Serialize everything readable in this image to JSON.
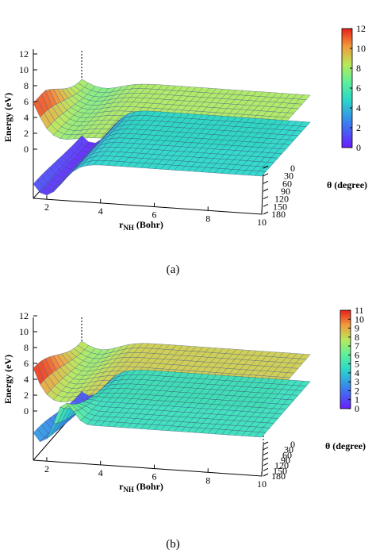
{
  "chart_data": [
    {
      "panel_label": "(a)",
      "type": "surface3d",
      "title": "",
      "xlabel_main": "r",
      "xlabel_sub": "NH",
      "xlabel_rest": " (Bohr)",
      "ylabel": "θ (degree)",
      "zlabel": "Energy (eV)",
      "x_ticks": [
        2,
        4,
        6,
        8,
        10
      ],
      "y_ticks": [
        0,
        30,
        60,
        90,
        120,
        150,
        180
      ],
      "z_ticks": [
        0,
        2,
        4,
        6,
        8,
        10,
        12
      ],
      "xlim": [
        1.5,
        10
      ],
      "ylim": [
        0,
        180
      ],
      "zlim": [
        0,
        12
      ],
      "colorbar": {
        "ticks": [
          0,
          2,
          4,
          6,
          8,
          10,
          12
        ],
        "range": [
          0,
          12
        ]
      },
      "series": [
        {
          "asymptote": 8.2,
          "min": 7.2,
          "r_min": 2.3,
          "peak": 12.0,
          "r0": 1.5
        },
        {
          "asymptote": 4.8,
          "min": 0.2,
          "r_min": 1.9,
          "peak": 1.0,
          "r0": 1.5
        }
      ]
    },
    {
      "panel_label": "(b)",
      "type": "surface3d",
      "title": "",
      "xlabel_main": "r",
      "xlabel_sub": "NH",
      "xlabel_rest": " (Bohr)",
      "ylabel": "θ (degree)",
      "zlabel": "Energy (eV)",
      "x_ticks": [
        2,
        4,
        6,
        8,
        10
      ],
      "y_ticks": [
        0,
        30,
        60,
        90,
        120,
        150,
        180
      ],
      "z_ticks": [
        0,
        2,
        4,
        6,
        8,
        10,
        12
      ],
      "xlim": [
        1.5,
        10
      ],
      "ylim": [
        0,
        180
      ],
      "zlim": [
        0,
        12
      ],
      "colorbar": {
        "ticks": [
          0,
          1,
          2,
          3,
          4,
          5,
          6,
          7,
          8,
          9,
          10,
          11
        ],
        "range": [
          0,
          11
        ]
      },
      "series": [
        {
          "asymptote": 8.3,
          "min": 7.0,
          "r_min": 2.2,
          "peak": 11.0,
          "r0": 1.5
        },
        {
          "asymptote": 4.9,
          "min": 1.0,
          "r_min": 1.8,
          "peak": 3.0,
          "r0": 1.5,
          "ridge": 9.0
        }
      ]
    }
  ]
}
